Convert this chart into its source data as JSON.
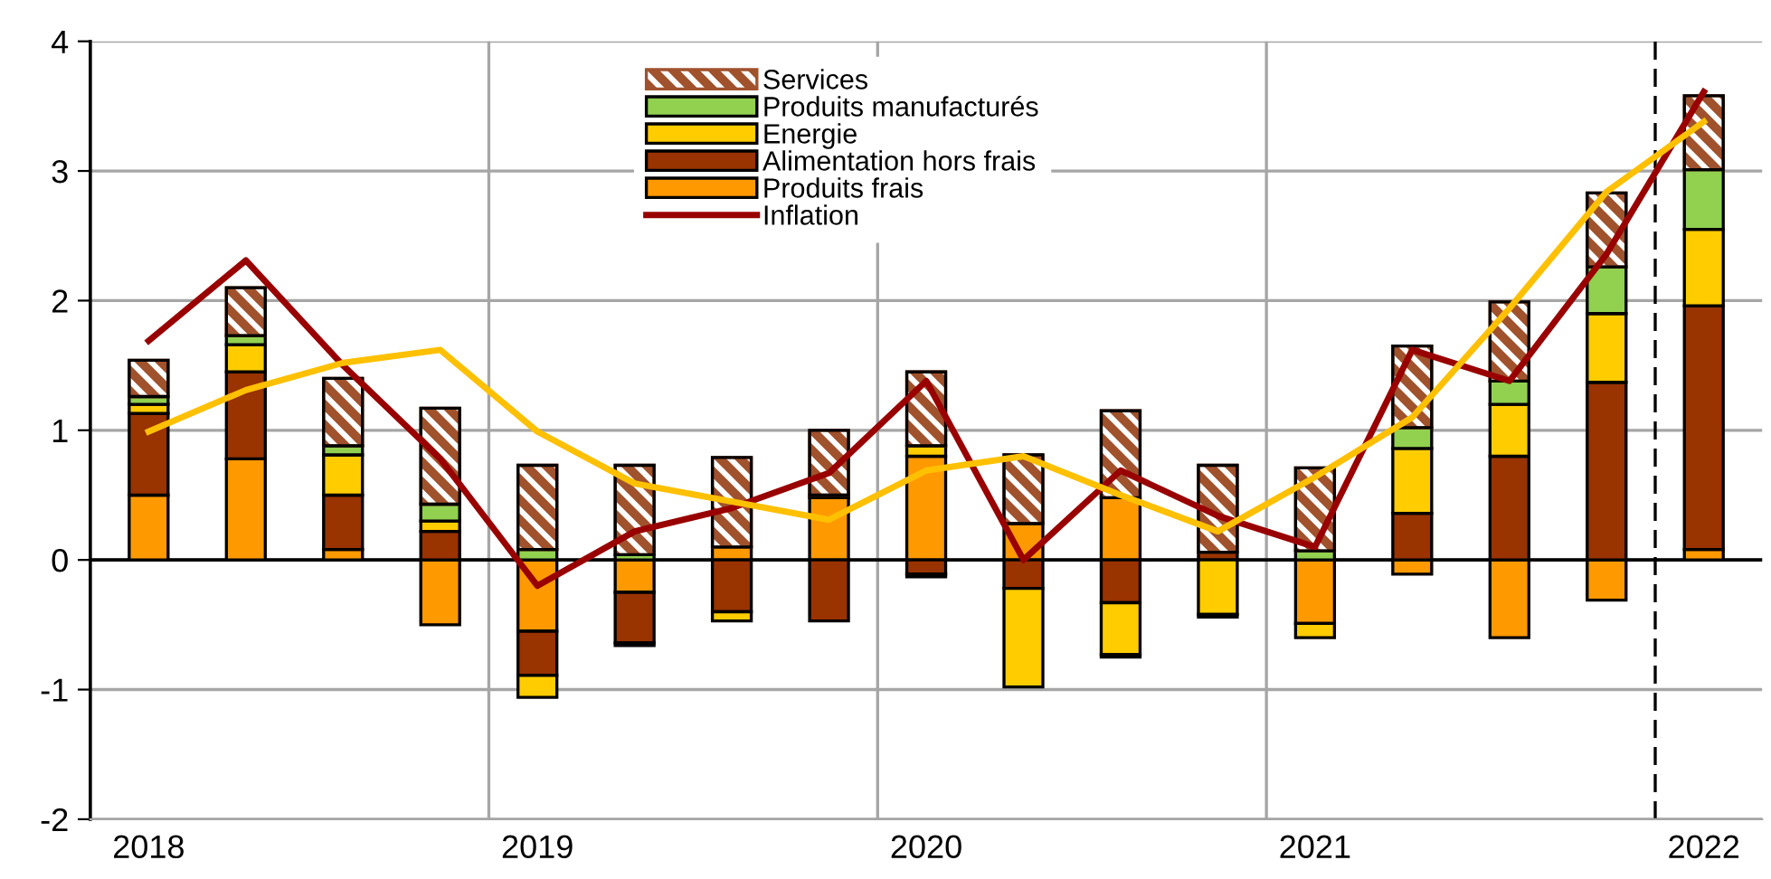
{
  "chart_data": {
    "type": "bar",
    "stacked": true,
    "categories": [
      "2018",
      null,
      null,
      null,
      "2019",
      null,
      null,
      null,
      "2020",
      null,
      null,
      null,
      "2021",
      null,
      null,
      null,
      "2022"
    ],
    "series": [
      {
        "name": "Produits frais",
        "color": "#ff9900",
        "values": [
          0.5,
          0.78,
          0.08,
          -0.5,
          -0.55,
          -0.25,
          0.1,
          0.48,
          0.8,
          0.28,
          0.48,
          null,
          -0.49,
          -0.11,
          -0.6,
          -0.31,
          0.08
        ]
      },
      {
        "name": "Alimentation hors frais",
        "color": "#993300",
        "values": [
          0.63,
          0.67,
          0.42,
          0.22,
          -0.34,
          -0.39,
          -0.4,
          -0.47,
          -0.11,
          -0.22,
          -0.33,
          0.06,
          null,
          0.36,
          0.8,
          1.37,
          1.88
        ]
      },
      {
        "name": "Energie",
        "color": "#ffcc00",
        "values": [
          0.07,
          0.21,
          0.31,
          0.08,
          -0.17,
          -0.02,
          -0.07,
          null,
          0.08,
          -0.76,
          -0.4,
          -0.42,
          -0.11,
          0.5,
          0.4,
          0.53,
          0.59
        ]
      },
      {
        "name": "Produits manufacturés",
        "color": "#92d050",
        "values": [
          0.06,
          0.07,
          0.07,
          0.13,
          0.08,
          0.04,
          null,
          0.02,
          -0.02,
          null,
          -0.02,
          -0.02,
          0.07,
          0.16,
          0.18,
          0.36,
          0.46
        ]
      },
      {
        "name": "Services",
        "color": "#a0522d",
        "values": [
          0.28,
          0.37,
          0.52,
          0.74,
          0.65,
          0.69,
          0.69,
          0.5,
          0.57,
          0.53,
          0.67,
          0.67,
          0.64,
          0.63,
          0.61,
          0.57,
          0.57
        ]
      },
      {
        "name": "Inflation",
        "type": "line",
        "color": "#990000",
        "values": [
          1.69,
          2.31,
          1.5,
          0.78,
          -0.2,
          0.22,
          0.4,
          0.67,
          1.38,
          0.0,
          0.69,
          0.34,
          0.1,
          1.62,
          1.38,
          2.36,
          3.61
        ]
      },
      {
        "type": "line",
        "color": "#ffc000",
        "values": [
          0.99,
          1.31,
          1.52,
          1.62,
          0.99,
          0.59,
          0.45,
          0.31,
          0.69,
          0.8,
          0.5,
          0.22,
          0.64,
          1.1,
          1.94,
          2.84,
          3.38
        ]
      }
    ],
    "ylim": [
      -2,
      4
    ],
    "yticks": [
      -2,
      -1,
      0,
      1,
      2,
      3,
      4
    ],
    "grid": "y",
    "legend": "top",
    "ref_lines": [
      {
        "axis": "y",
        "value": 0,
        "color": "#000000"
      }
    ]
  }
}
